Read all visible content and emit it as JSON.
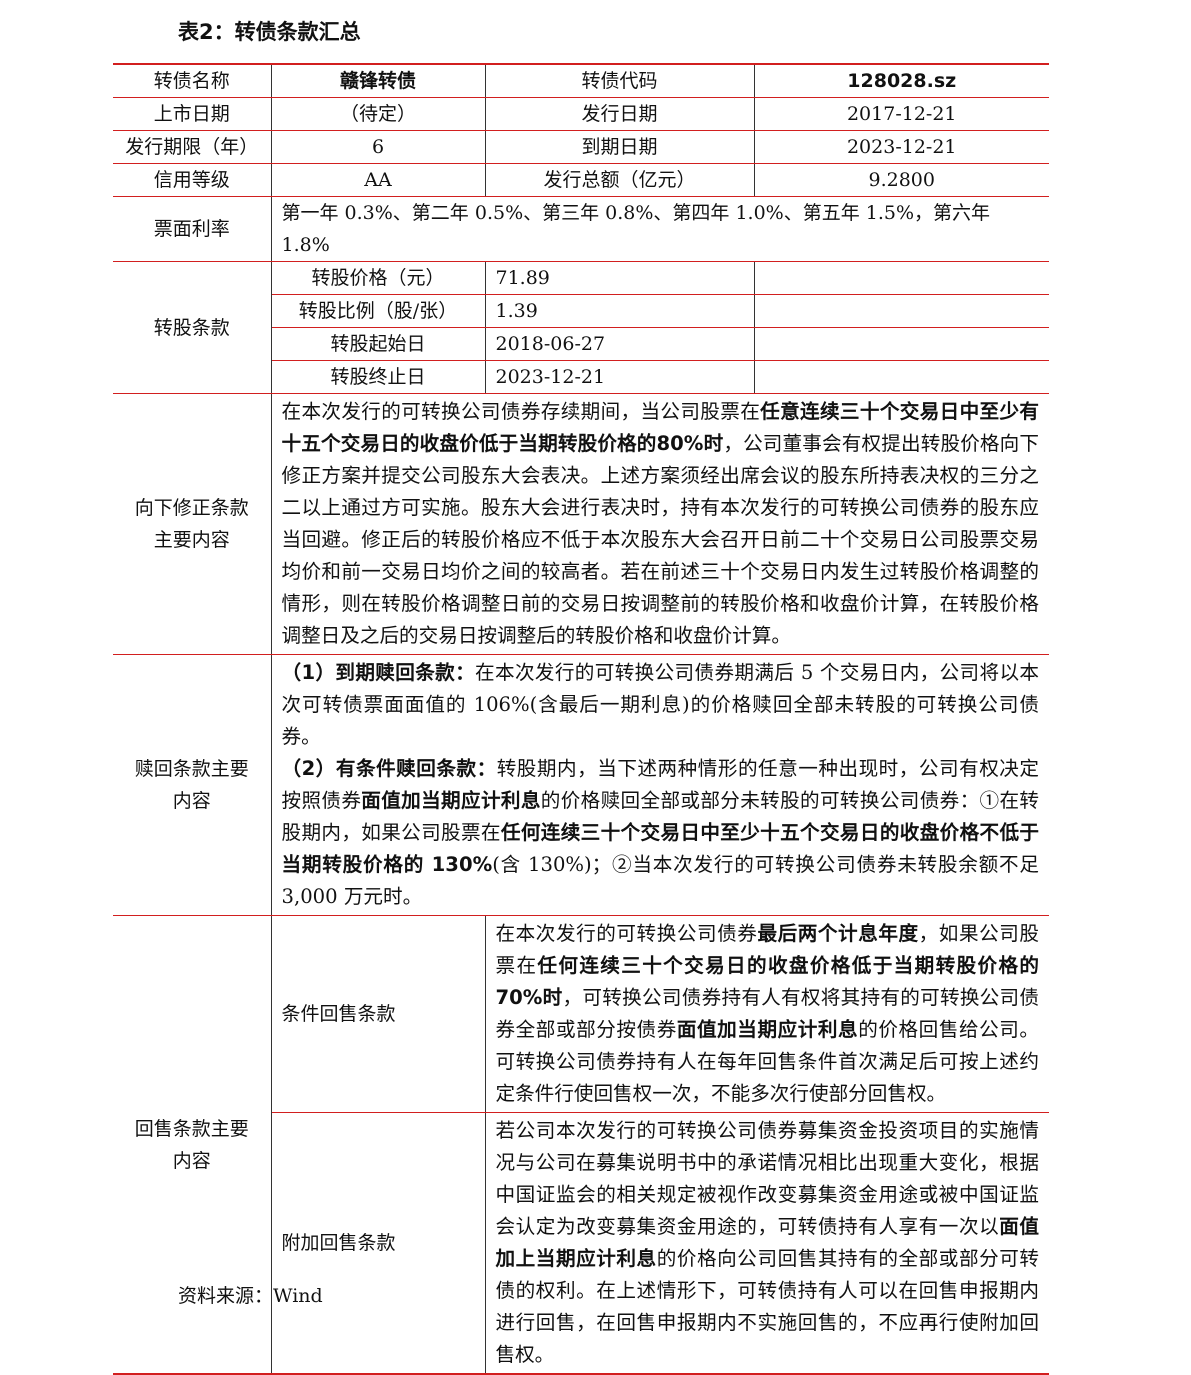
{
  "title": "表2：转债条款汇总",
  "table": {
    "basic": [
      [
        "转债名称",
        "赣锋转债",
        "转债代码",
        "128028.sz"
      ],
      [
        "上市日期",
        "（待定）",
        "发行日期",
        "2017-12-21"
      ],
      [
        "发行期限（年）",
        "6",
        "到期日期",
        "2023-12-21"
      ],
      [
        "信用等级",
        "AA",
        "发行总额（亿元）",
        "9.2800"
      ]
    ],
    "coupon": {
      "label": "票面利率",
      "text": "第一年 0.3%、第二年 0.5%、第三年 0.8%、第四年 1.0%、第五年 1.5%，第六年 1.8%"
    },
    "conversion": {
      "label": "转股条款",
      "rows": [
        [
          "转股价格（元）",
          "71.89"
        ],
        [
          "转股比例（股/张）",
          "1.39"
        ],
        [
          "转股起始日",
          "2018-06-27"
        ],
        [
          "转股终止日",
          "2023-12-21"
        ]
      ]
    },
    "reset": {
      "label": [
        "向下修正条款",
        "主要内容"
      ],
      "paragraphs": [
        [
          {
            "text": "在本次发行的可转换公司债券存续期间，当公司股票在",
            "bold": false
          },
          {
            "text": "任意连续三十个交易日中至少有十五个交易日的收盘价低于当期转股价格的80%时",
            "bold": true
          },
          {
            "text": "，公司董事会有权提出转股价格向下修正方案并提交公司股东大会表决。上述方案须经出席会议的股东所持表决权的三分之二以上通过方可实施。股东大会进行表决时，持有本次发行的可转换公司债券的股东应当回避。修正后的转股价格应不低于本次股东大会召开日前二十个交易日公司股票交易均价和前一交易日均价之间的较高者。若在前述三十个交易日内发生过转股价格调整的情形，则在转股价格调整日前的交易日按调整前的转股价格和收盘价计算，在转股价格调整日及之后的交易日按调整后的转股价格和收盘价计算。",
            "bold": false
          }
        ]
      ]
    },
    "redemption": {
      "label": [
        "赎回条款主要",
        "内容"
      ],
      "paragraphs": [
        [
          {
            "text": "（1）到期赎回条款：",
            "bold": true
          },
          {
            "text": "在本次发行的可转换公司债券期满后 5 个交易日内，公司将以本次可转债票面面值的 106%(含最后一期利息)的价格赎回全部未转股的可转换公司债券。",
            "bold": false
          }
        ],
        [
          {
            "text": "（2）有条件赎回条款：",
            "bold": true
          },
          {
            "text": "转股期内，当下述两种情形的任意一种出现时，公司有权决定按照债券",
            "bold": false
          },
          {
            "text": "面值加当期应计利息",
            "bold": true
          },
          {
            "text": "的价格赎回全部或部分未转股的可转换公司债券：①在转股期内，如果公司股票在",
            "bold": false
          },
          {
            "text": "任何连续三十个交易日中至少十五个交易日的收盘价格不低于当期转股价格的 130%",
            "bold": true
          },
          {
            "text": "(含 130%)；②当本次发行的可转换公司债券未转股余额不足 3,000 万元时。",
            "bold": false
          }
        ]
      ]
    },
    "putback": {
      "label": [
        "回售条款主要",
        "内容"
      ],
      "items": [
        {
          "label": "条件回售条款",
          "segments": [
            {
              "text": "在本次发行的可转换公司债券",
              "bold": false
            },
            {
              "text": "最后两个计息年度",
              "bold": true
            },
            {
              "text": "，如果公司股票在",
              "bold": false
            },
            {
              "text": "任何连续三十个交易日的收盘价格低于当期转股价格的70%时",
              "bold": true
            },
            {
              "text": "，可转换公司债券持有人有权将其持有的可转换公司债券全部或部分按债券",
              "bold": false
            },
            {
              "text": "面值加当期应计利息",
              "bold": true
            },
            {
              "text": "的价格回售给公司。可转换公司债券持有人在每年回售条件首次满足后可按上述约定条件行使回售权一次，不能多次行使部分回售权。",
              "bold": false
            }
          ]
        },
        {
          "label": "附加回售条款",
          "segments": [
            {
              "text": "若公司本次发行的可转换公司债券募集资金投资项目的实施情况与公司在募集说明书中的承诺情况相比出现重大变化，根据中国证监会的相关规定被视作改变募集资金用途或被中国证监会认定为改变募集资金用途的，可转债持有人享有一次以",
              "bold": false
            },
            {
              "text": "面值加上当期应计利息",
              "bold": true
            },
            {
              "text": "的价格向公司回售其持有的全部或部分可转债的权利。在上述情形下，可转债持有人可以在回售申报期内进行回售，在回售申报期内不实施回售的，不应再行使附加回售权。",
              "bold": false
            }
          ]
        }
      ]
    }
  },
  "source": "资料来源：Wind"
}
